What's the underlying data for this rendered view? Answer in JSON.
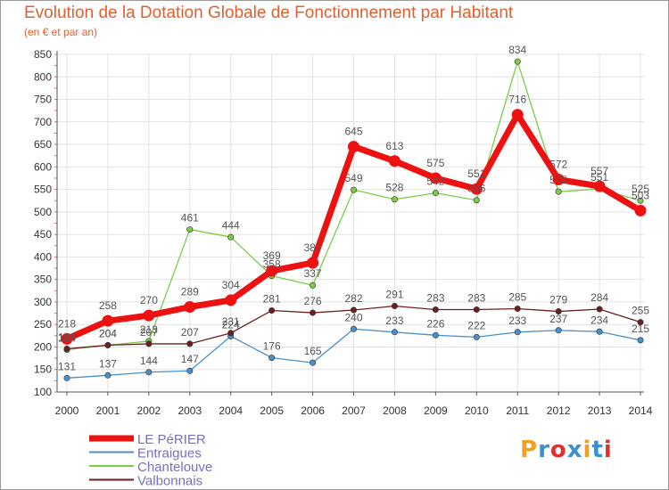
{
  "chart_data": {
    "type": "line",
    "title": "Evolution de la Dotation Globale de Fonctionnement par Habitant",
    "subtitle": "(en € et par an)",
    "categories": [
      "2000",
      "2001",
      "2002",
      "2003",
      "2004",
      "2005",
      "2006",
      "2007",
      "2008",
      "2009",
      "2010",
      "2011",
      "2012",
      "2013",
      "2014"
    ],
    "ylim": [
      100,
      850
    ],
    "yticks": [
      100,
      150,
      200,
      250,
      300,
      350,
      400,
      450,
      500,
      550,
      600,
      650,
      700,
      750,
      800,
      850
    ],
    "series": [
      {
        "name": "Entraigues",
        "color": "#4a90c8",
        "values": [
          131,
          137,
          144,
          147,
          224,
          176,
          165,
          240,
          233,
          226,
          222,
          233,
          237,
          234,
          215
        ]
      },
      {
        "name": "Chantelouve",
        "color": "#7ccc4a",
        "values": [
          194,
          204,
          213,
          461,
          444,
          358,
          337,
          549,
          528,
          542,
          526,
          834,
          545,
          551,
          525
        ]
      },
      {
        "name": "Valbonnais",
        "color": "#6a2020",
        "values": [
          196,
          204,
          207,
          207,
          231,
          281,
          276,
          282,
          291,
          283,
          283,
          285,
          279,
          284,
          255
        ]
      },
      {
        "name": "LE PéRIER",
        "color": "#ee1111",
        "values": [
          218,
          258,
          270,
          289,
          304,
          369,
          387,
          645,
          613,
          575,
          551,
          716,
          572,
          557,
          503
        ]
      }
    ],
    "legend": [
      "LE PéRIER",
      "Entraigues",
      "Chantelouve",
      "Valbonnais"
    ],
    "legend_position": "bottom-left"
  },
  "logo_text": "Proxiti",
  "logo_colors": [
    "#f0a020",
    "#3a90d0",
    "#e03030",
    "#3a90d0",
    "#f0a020",
    "#3a90d0",
    "#e03030"
  ]
}
